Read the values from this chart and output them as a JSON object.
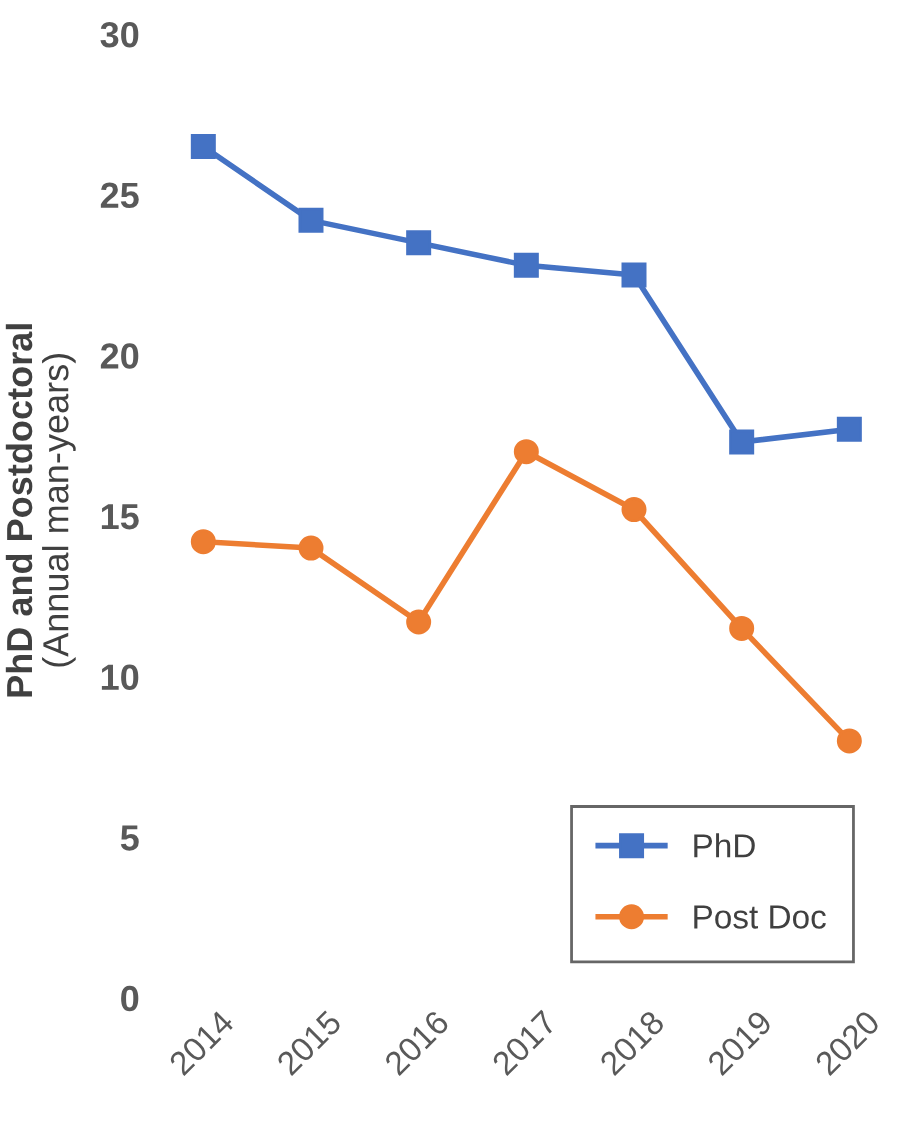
{
  "chart_data": {
    "type": "line",
    "ylabel": "PhD and Postdoctoral\n(Annual man-years)",
    "categories": [
      "2014",
      "2015",
      "2016",
      "2017",
      "2018",
      "2019",
      "2020"
    ],
    "series": [
      {
        "name": "PhD",
        "color": "#4472c4",
        "marker": "square",
        "values": [
          26.5,
          24.2,
          23.5,
          22.8,
          22.5,
          17.3,
          17.7
        ]
      },
      {
        "name": "Post Doc",
        "color": "#ed7d31",
        "marker": "circle",
        "values": [
          14.2,
          14.0,
          11.7,
          17.0,
          15.2,
          11.5,
          8.0
        ]
      }
    ],
    "ylim": [
      0,
      30
    ],
    "yticks": [
      0,
      5,
      10,
      15,
      20,
      25,
      30
    ],
    "grid": false,
    "legend": "bottom right",
    "line_style": "solid"
  }
}
